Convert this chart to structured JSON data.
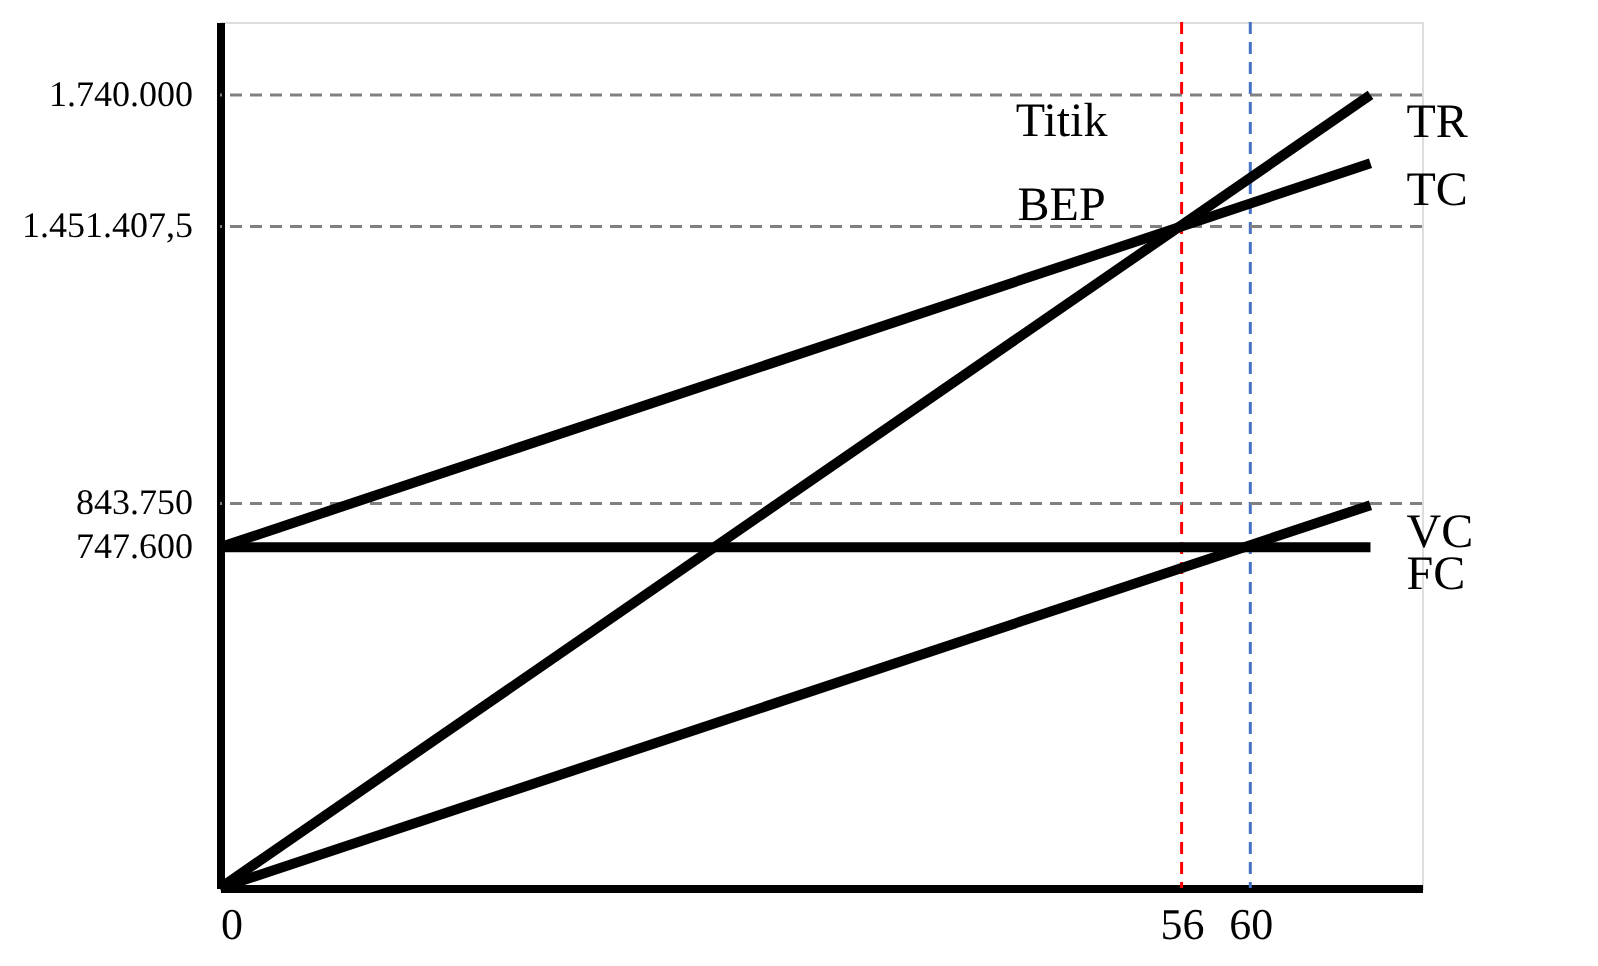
{
  "chart_data": {
    "type": "line",
    "x": [
      0,
      67
    ],
    "series": [
      {
        "name": "TR",
        "color": "#000000",
        "values": [
          0,
          1740000
        ]
      },
      {
        "name": "TC",
        "color": "#000000",
        "values": [
          747600,
          1590000
        ]
      },
      {
        "name": "VC",
        "color": "#000000",
        "values": [
          0,
          840000
        ]
      },
      {
        "name": "FC",
        "color": "#000000",
        "values": [
          747600,
          747600
        ]
      }
    ],
    "xlim": [
      0,
      70
    ],
    "xticks": [
      0,
      56,
      60
    ],
    "ylim": [
      0,
      1900000
    ],
    "yticks": [
      {
        "value": 747600,
        "label": "747.600"
      },
      {
        "value": 843750,
        "label": "843.750"
      },
      {
        "value": 1451407.5,
        "label": "1.451.407,5"
      },
      {
        "value": 1740000,
        "label": "1.740.000"
      }
    ],
    "ref_lines": [
      {
        "axis": "y",
        "value": 843750,
        "color": "#808080",
        "line_style": "dashed"
      },
      {
        "axis": "y",
        "value": 1451407.5,
        "color": "#808080",
        "line_style": "dashed"
      },
      {
        "axis": "y",
        "value": 1740000,
        "color": "#808080",
        "line_style": "dashed"
      },
      {
        "axis": "x",
        "value": 56,
        "color": "#ff0000",
        "line_style": "dashed"
      },
      {
        "axis": "x",
        "value": 60,
        "color": "#4472c4",
        "line_style": "dashed"
      }
    ],
    "annotations": [
      {
        "text": "Titik\nBEP",
        "x": 56,
        "y": 1451407.5
      }
    ],
    "grid": false,
    "marker": "none",
    "line_style": "solid"
  }
}
